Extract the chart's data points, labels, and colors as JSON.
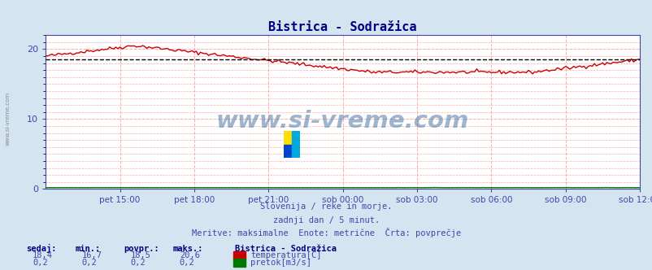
{
  "title": "Bistrica - Sodražica",
  "bg_color": "#d4e4f0",
  "plot_bg_color": "#ffffff",
  "grid_color": "#ffaaaa",
  "grid_style": "--",
  "xlim": [
    0,
    288
  ],
  "ylim": [
    0,
    22
  ],
  "yticks": [
    0,
    10,
    20
  ],
  "xtick_labels": [
    "pet 15:00",
    "pet 18:00",
    "pet 21:00",
    "sob 00:00",
    "sob 03:00",
    "sob 06:00",
    "sob 09:00",
    "sob 12:00"
  ],
  "xtick_positions": [
    36,
    72,
    108,
    144,
    180,
    216,
    252,
    288
  ],
  "temp_color": "#cc0000",
  "pretok_color": "#007700",
  "avg_color": "#000000",
  "avg_line_style": "--",
  "avg_value": 18.5,
  "subtitle1": "Slovenija / reke in morje.",
  "subtitle2": "zadnji dan / 5 minut.",
  "subtitle3": "Meritve: maksimalne  Enote: metrične  Črta: povprečje",
  "legend_title": "Bistrica - Sodražica",
  "label_sedaj": "sedaj:",
  "label_min": "min.:",
  "label_povpr": "povpr.:",
  "label_maks": "maks.:",
  "val_sedaj_temp": "18,4",
  "val_min_temp": "16,7",
  "val_povpr_temp": "18,5",
  "val_maks_temp": "20,6",
  "val_sedaj_pretok": "0,2",
  "val_min_pretok": "0,2",
  "val_povpr_pretok": "0,2",
  "val_maks_pretok": "0,2",
  "label_temp": "temperatura[C]",
  "label_pretok": "pretok[m3/s]",
  "watermark": "www.si-vreme.com",
  "left_label": "www.si-vreme.com",
  "title_color": "#000080",
  "text_color": "#4444aa",
  "axes_color": "#4444aa"
}
